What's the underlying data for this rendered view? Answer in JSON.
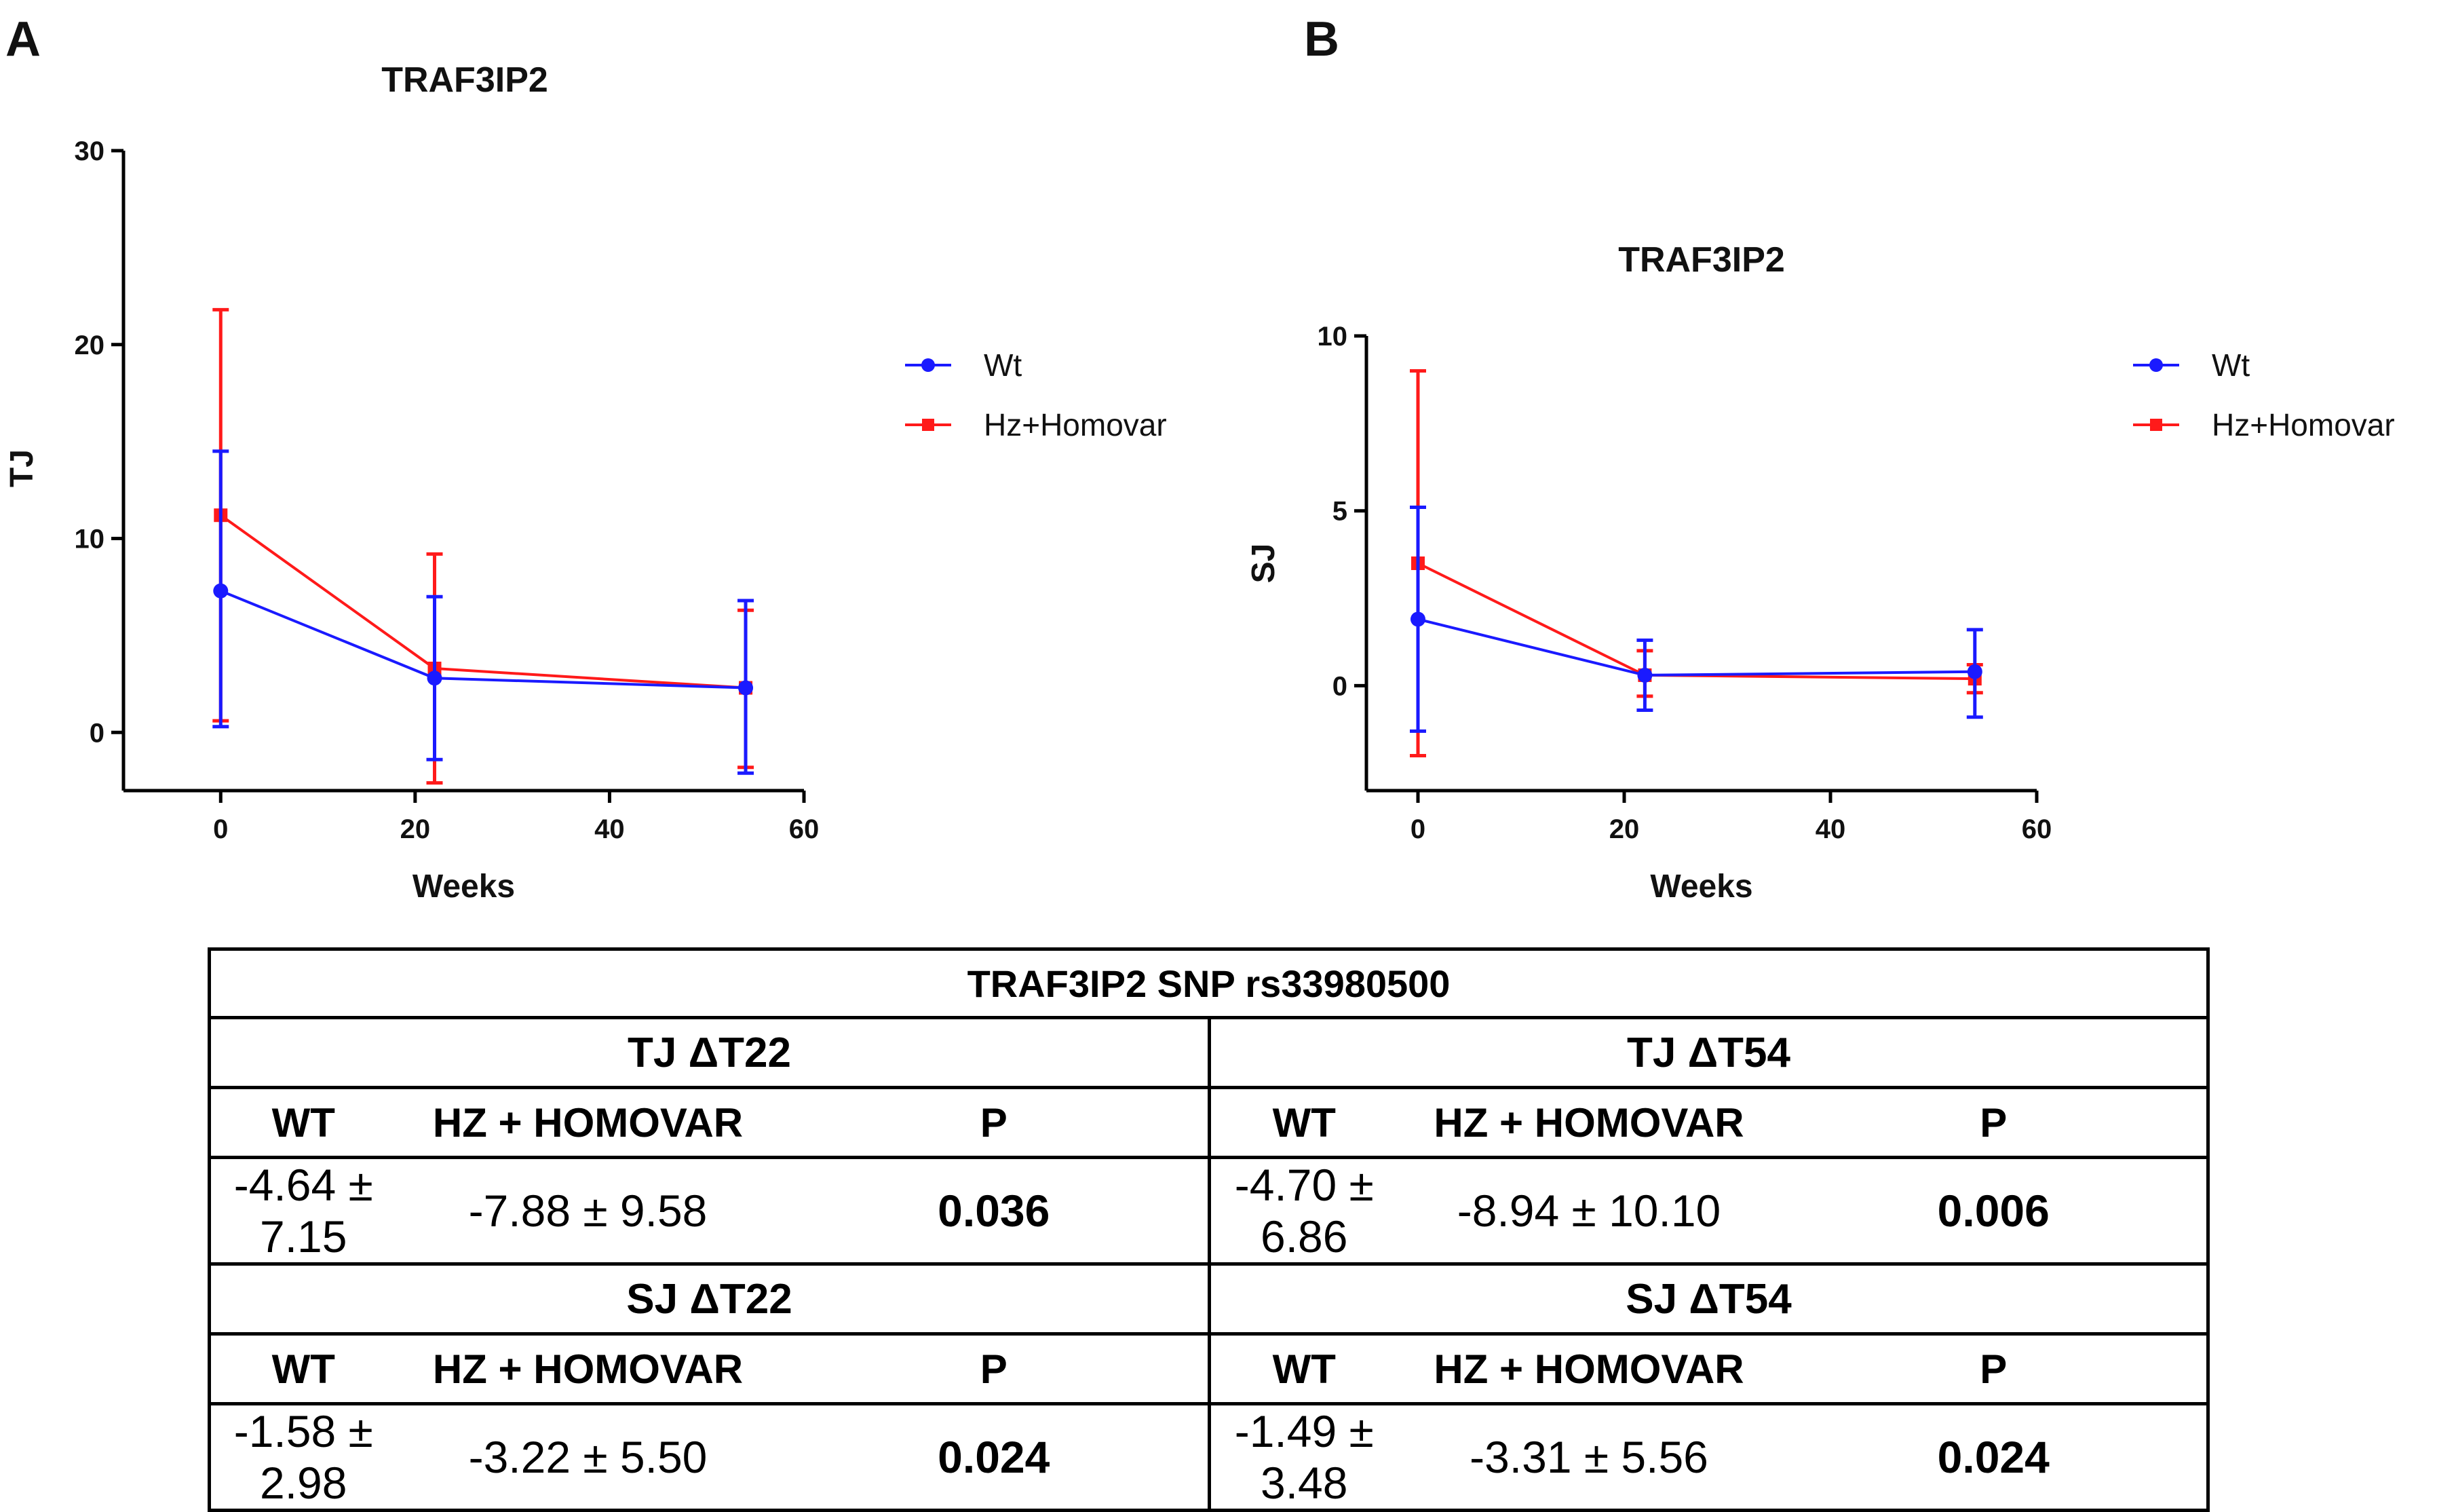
{
  "panels": [
    {
      "letter": "A"
    },
    {
      "letter": "B"
    }
  ],
  "chart_data": [
    {
      "type": "line",
      "title": "TRAF3IP2",
      "xlabel": "Weeks",
      "ylabel": "TJ",
      "xlim": [
        -10,
        60
      ],
      "ylim": [
        -3,
        30
      ],
      "xticks": [
        0,
        20,
        40,
        60
      ],
      "yticks": [
        0,
        10,
        20,
        30
      ],
      "legend_position": "right",
      "series": [
        {
          "name": "Wt",
          "color": "#1a1aff",
          "marker": "circle",
          "x": [
            0,
            22,
            54
          ],
          "y": [
            7.3,
            2.8,
            2.3
          ],
          "err_low": [
            0.3,
            -1.4,
            -2.1
          ],
          "err_high": [
            14.5,
            7.0,
            6.8
          ]
        },
        {
          "name": "Hz+Homovar",
          "color": "#ff1a1a",
          "marker": "square",
          "x": [
            0,
            22,
            54
          ],
          "y": [
            11.2,
            3.3,
            2.3
          ],
          "err_low": [
            0.6,
            -2.6,
            -1.8
          ],
          "err_high": [
            21.8,
            9.2,
            6.3
          ]
        }
      ]
    },
    {
      "type": "line",
      "title": "TRAF3IP2",
      "xlabel": "Weeks",
      "ylabel": "SJ",
      "xlim": [
        -5,
        60
      ],
      "ylim": [
        -3,
        10
      ],
      "xticks": [
        0,
        20,
        40,
        60
      ],
      "yticks": [
        0,
        5,
        10
      ],
      "legend_position": "right",
      "series": [
        {
          "name": "Wt",
          "color": "#1a1aff",
          "marker": "circle",
          "x": [
            0,
            22,
            54
          ],
          "y": [
            1.9,
            0.3,
            0.4
          ],
          "err_low": [
            -1.3,
            -0.7,
            -0.9
          ],
          "err_high": [
            5.1,
            1.3,
            1.6
          ]
        },
        {
          "name": "Hz+Homovar",
          "color": "#ff1a1a",
          "marker": "square",
          "x": [
            0,
            22,
            54
          ],
          "y": [
            3.5,
            0.3,
            0.2
          ],
          "err_low": [
            -2.0,
            -0.3,
            -0.2
          ],
          "err_high": [
            9.0,
            1.0,
            0.6
          ]
        }
      ]
    }
  ],
  "table": {
    "title": "TRAF3IP2 SNP rs33980500",
    "tj_t22": "TJ ΔT22",
    "tj_t54": "TJ ΔT54",
    "sj_t22": "SJ ΔT22",
    "sj_t54": "SJ ΔT54",
    "col_wt": "WT",
    "col_hz": "HZ + HOMOVAR",
    "col_p": "P",
    "tj22": {
      "wt": "-4.64 ± 7.15",
      "hz": "-7.88 ± 9.58",
      "p": "0.036"
    },
    "tj54": {
      "wt": "-4.70 ± 6.86",
      "hz": "-8.94 ± 10.10",
      "p": "0.006"
    },
    "sj22": {
      "wt": "-1.58 ± 2.98",
      "hz": "-3.22 ± 5.50",
      "p": "0.024"
    },
    "sj54": {
      "wt": "-1.49 ± 3.48",
      "hz": "-3.31 ± 5.56",
      "p": "0.024"
    }
  }
}
